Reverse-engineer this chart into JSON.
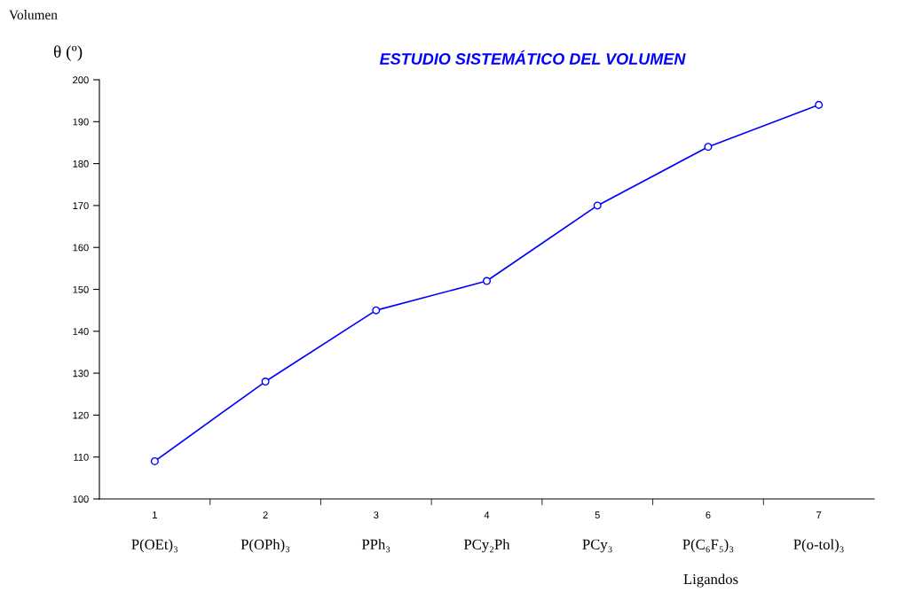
{
  "chart_data": {
    "type": "line",
    "title": "ESTUDIO SISTEMÁTICO DEL VOLUMEN",
    "ylabel": "θ (º)",
    "xlabel": "Ligandos",
    "categories": [
      "1\nP(OEt)₃",
      "2\nP(OPh)₃",
      "3\nPPh₃",
      "4\nPCy₂Ph",
      "5\nPCy₃",
      "6\nP(C₆F₅)₃",
      "7\nP(o-tol)₃"
    ],
    "series": [
      {
        "color": "#0000ff",
        "values": [
          109,
          128,
          145,
          152,
          170,
          184,
          194
        ]
      }
    ],
    "ylim": [
      100,
      200
    ],
    "yticks": [
      100,
      110,
      120,
      130,
      140,
      150,
      160,
      170,
      180,
      190,
      200
    ],
    "grid": false,
    "marker": "circle",
    "line_style": "solid",
    "annotations": [
      "Volumen"
    ]
  }
}
